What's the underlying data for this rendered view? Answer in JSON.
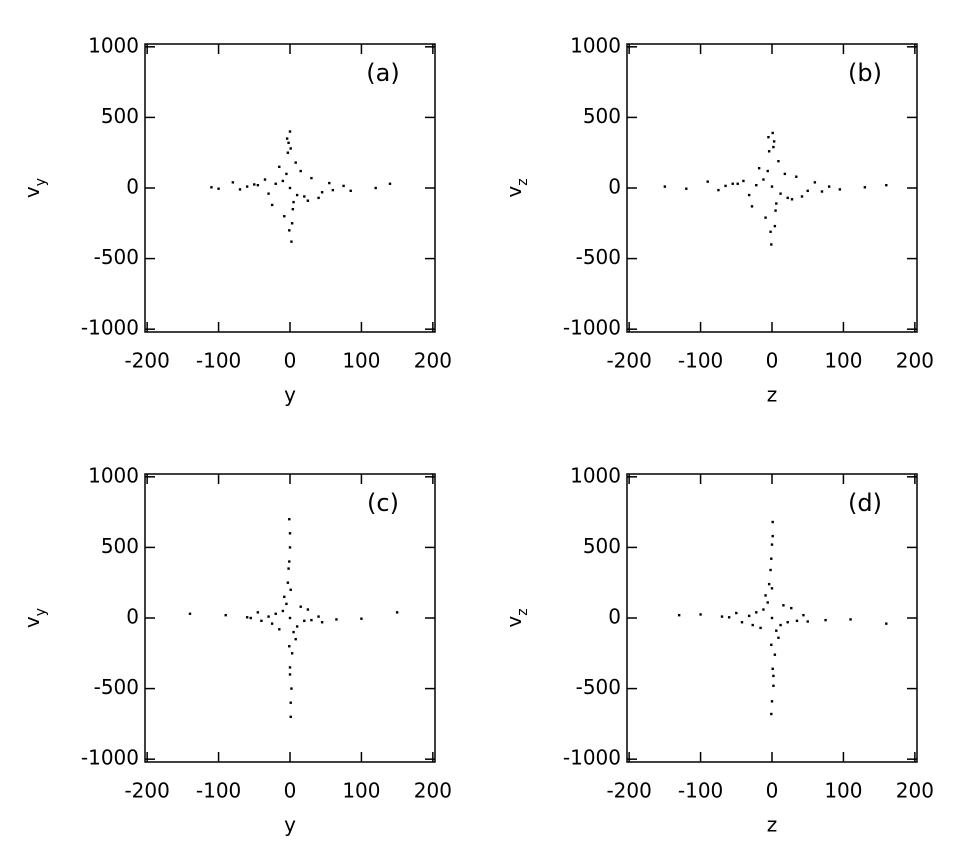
{
  "chart_data": [
    {
      "type": "scatter",
      "annotation": "(a)",
      "xlabel": "y",
      "ylabel": {
        "text": "v",
        "sub": "y"
      },
      "color": "#000000",
      "xlim": [
        -203,
        203
      ],
      "ylim": [
        -1020,
        1020
      ],
      "xticks": [
        -200,
        -100,
        0,
        100,
        200
      ],
      "yticks": [
        -1000,
        -500,
        0,
        500,
        1000
      ],
      "x": [
        0,
        -5,
        5,
        -10,
        10,
        -3,
        3,
        -20,
        20,
        -15,
        15,
        -30,
        30,
        -45,
        45,
        -60,
        60,
        -80,
        85,
        -110,
        140,
        0,
        2,
        -2,
        -8,
        8,
        -25,
        25,
        -35,
        40,
        -50,
        55,
        -70,
        75,
        -100,
        120,
        -1,
        1,
        4,
        -4
      ],
      "values": [
        0,
        100,
        -100,
        50,
        -50,
        250,
        -250,
        30,
        -60,
        150,
        120,
        -40,
        70,
        20,
        -30,
        10,
        -15,
        40,
        -20,
        5,
        30,
        400,
        -380,
        320,
        -200,
        180,
        -120,
        -90,
        60,
        -70,
        25,
        35,
        -10,
        15,
        -5,
        0,
        -300,
        280,
        -150,
        350
      ]
    },
    {
      "type": "scatter",
      "annotation": "(b)",
      "xlabel": "z",
      "ylabel": {
        "text": "v",
        "sub": "z"
      },
      "color": "#000000",
      "xlim": [
        -203,
        203
      ],
      "ylim": [
        -1020,
        1020
      ],
      "xticks": [
        -200,
        -100,
        0,
        100,
        200
      ],
      "yticks": [
        -1000,
        -500,
        0,
        500,
        1000
      ],
      "x": [
        0,
        -6,
        6,
        -12,
        12,
        -4,
        4,
        -22,
        22,
        -18,
        18,
        -32,
        34,
        -48,
        50,
        -65,
        70,
        -90,
        95,
        -150,
        160,
        1,
        -1,
        3,
        -9,
        9,
        -28,
        28,
        -40,
        42,
        -55,
        60,
        -75,
        80,
        -120,
        130,
        -2,
        2,
        5,
        -5
      ],
      "values": [
        10,
        120,
        -110,
        60,
        -40,
        260,
        -270,
        20,
        -70,
        140,
        100,
        -50,
        80,
        30,
        -20,
        15,
        -25,
        45,
        -10,
        10,
        20,
        390,
        -400,
        330,
        -210,
        190,
        -130,
        -80,
        50,
        -60,
        30,
        40,
        -15,
        10,
        -5,
        5,
        -310,
        290,
        -160,
        360
      ]
    },
    {
      "type": "scatter",
      "annotation": "(c)",
      "xlabel": "y",
      "ylabel": {
        "text": "v",
        "sub": "y"
      },
      "color": "#000000",
      "xlim": [
        -203,
        203
      ],
      "ylim": [
        -1020,
        1020
      ],
      "xticks": [
        -200,
        -100,
        0,
        100,
        200
      ],
      "yticks": [
        -1000,
        -500,
        0,
        500,
        1000
      ],
      "x": [
        0,
        -1,
        1,
        0,
        2,
        -2,
        0,
        1,
        -1,
        -5,
        5,
        -10,
        10,
        -20,
        20,
        -30,
        30,
        -45,
        45,
        -60,
        65,
        -90,
        100,
        -140,
        150,
        -3,
        3,
        -8,
        8,
        -15,
        15,
        -25,
        25,
        -40,
        40,
        -55,
        0,
        1,
        -1,
        0
      ],
      "values": [
        0,
        700,
        -700,
        500,
        -500,
        350,
        -350,
        200,
        -200,
        100,
        -100,
        50,
        -60,
        30,
        -20,
        10,
        -15,
        40,
        -30,
        5,
        -10,
        20,
        -5,
        30,
        40,
        250,
        -250,
        150,
        -150,
        -80,
        80,
        -40,
        60,
        -20,
        10,
        0,
        600,
        -600,
        400,
        -400
      ]
    },
    {
      "type": "scatter",
      "annotation": "(d)",
      "xlabel": "z",
      "ylabel": {
        "text": "v",
        "sub": "z"
      },
      "color": "#000000",
      "xlim": [
        -203,
        203
      ],
      "ylim": [
        -1020,
        1020
      ],
      "xticks": [
        -200,
        -100,
        0,
        100,
        200
      ],
      "yticks": [
        -1000,
        -500,
        0,
        500,
        1000
      ],
      "x": [
        0,
        1,
        -1,
        0,
        2,
        -2,
        1,
        0,
        -1,
        -6,
        6,
        -12,
        12,
        -22,
        22,
        -32,
        35,
        -50,
        50,
        -70,
        75,
        -100,
        110,
        -130,
        160,
        -4,
        4,
        -9,
        9,
        -16,
        16,
        -27,
        27,
        -42,
        44,
        -60,
        1,
        0,
        -1,
        2
      ],
      "values": [
        0,
        680,
        -680,
        520,
        -480,
        340,
        -360,
        210,
        -190,
        110,
        -90,
        60,
        -50,
        40,
        -30,
        15,
        -20,
        35,
        -25,
        10,
        -15,
        25,
        -10,
        20,
        -40,
        240,
        -260,
        160,
        -140,
        -70,
        90,
        -50,
        70,
        -30,
        20,
        5,
        580,
        -590,
        420,
        -410
      ]
    }
  ]
}
